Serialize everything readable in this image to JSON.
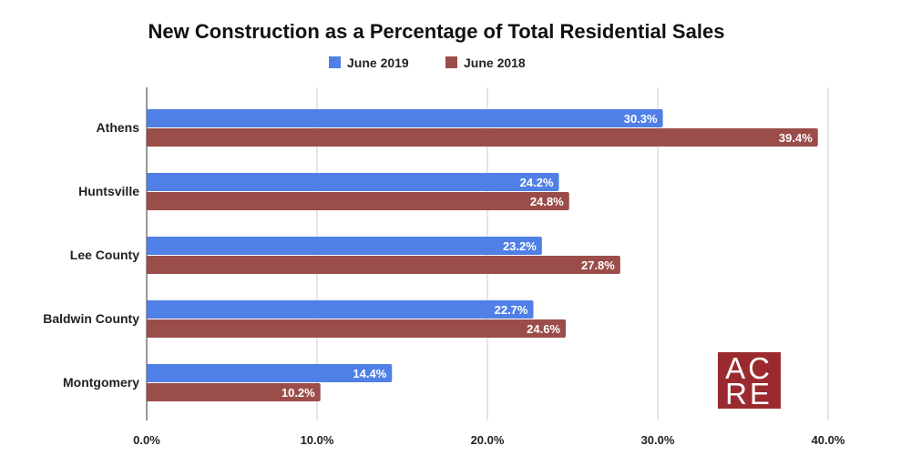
{
  "chart_data": {
    "type": "bar",
    "orientation": "horizontal",
    "title": "New Construction as a Percentage of Total Residential Sales",
    "categories": [
      "Athens",
      "Huntsville",
      "Lee County",
      "Baldwin County",
      "Montgomery"
    ],
    "series": [
      {
        "name": "June 2019",
        "color": "#5080e6",
        "values": [
          30.3,
          24.2,
          23.2,
          22.7,
          14.4
        ],
        "labels": [
          "30.3%",
          "24.2%",
          "23.2%",
          "22.7%",
          "14.4%"
        ]
      },
      {
        "name": "June 2018",
        "color": "#9b4d4a",
        "values": [
          39.4,
          24.8,
          27.8,
          24.6,
          10.2
        ],
        "labels": [
          "39.4%",
          "24.8%",
          "27.8%",
          "24.6%",
          "10.2%"
        ]
      }
    ],
    "xlim": [
      0,
      40
    ],
    "xticks": [
      0,
      10,
      20,
      30,
      40
    ],
    "xtick_labels": [
      "0.0%",
      "10.0%",
      "20.0%",
      "30.0%",
      "40.0%"
    ],
    "xlabel": "",
    "ylabel": "",
    "grid": true,
    "legend_position": "top-center"
  },
  "logo": {
    "line1": "AC",
    "line2": "RE",
    "color": "#9b2a2f"
  }
}
